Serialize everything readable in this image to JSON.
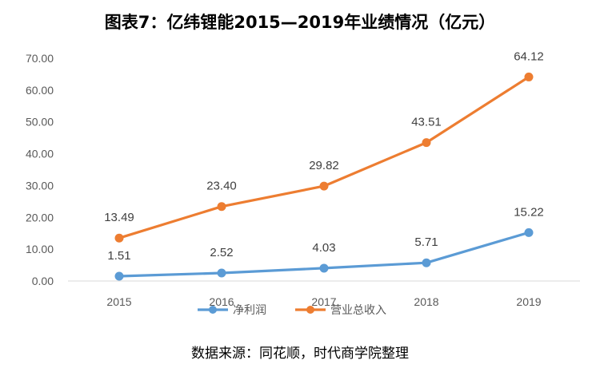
{
  "title": "图表7：亿纬锂能2015—2019年业绩情况（亿元）",
  "source": "数据来源：同花顺，时代商学院整理",
  "chart_data": {
    "type": "line",
    "categories": [
      "2015",
      "2016",
      "2017",
      "2018",
      "2019"
    ],
    "y_ticks": [
      "0.00",
      "10.00",
      "20.00",
      "30.00",
      "40.00",
      "50.00",
      "60.00",
      "70.00"
    ],
    "ylim": [
      0,
      70
    ],
    "grid": false,
    "legend_position": "bottom",
    "series": [
      {
        "name": "营业总收入",
        "color": "#ED7D31",
        "values": [
          13.49,
          23.4,
          29.82,
          43.51,
          64.12
        ],
        "labels": [
          "13.49",
          "23.40",
          "29.82",
          "43.51",
          "64.12"
        ]
      },
      {
        "name": "净利润",
        "color": "#5B9BD5",
        "values": [
          1.51,
          2.52,
          4.03,
          5.71,
          15.22
        ],
        "labels": [
          "1.51",
          "2.52",
          "4.03",
          "5.71",
          "15.22"
        ]
      }
    ],
    "legend_order": [
      "净利润",
      "营业总收入"
    ]
  }
}
